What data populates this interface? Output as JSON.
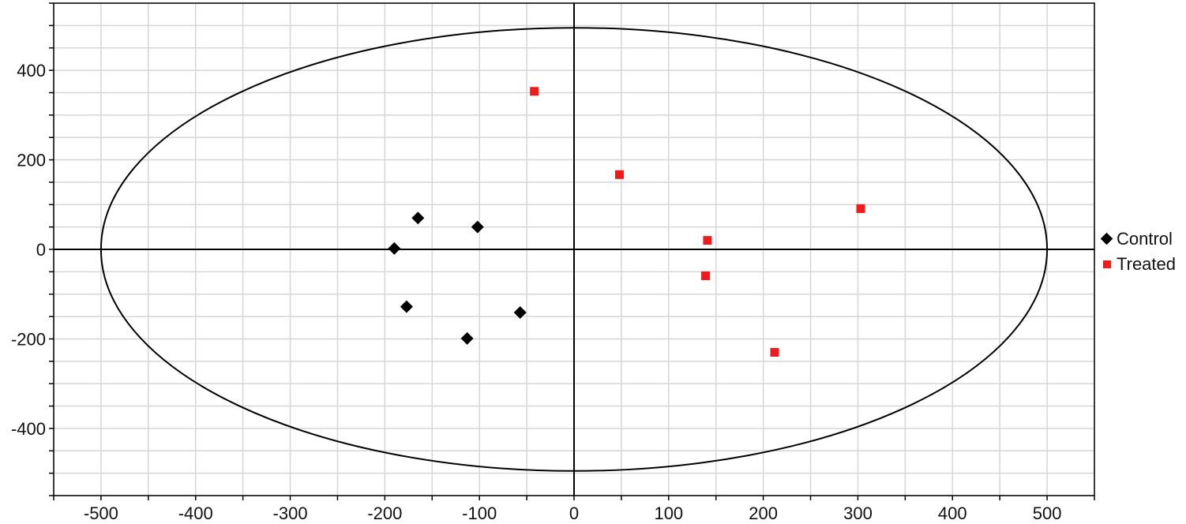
{
  "chart_data": {
    "type": "scatter",
    "title": "",
    "xlabel": "",
    "ylabel": "",
    "xlim": [
      -550,
      550
    ],
    "ylim": [
      -550,
      550
    ],
    "x_ticks": [
      -500,
      -400,
      -300,
      -200,
      -100,
      0,
      100,
      200,
      300,
      400,
      500
    ],
    "y_ticks": [
      -400,
      -200,
      0,
      200,
      400
    ],
    "x_tick_labels": [
      "-500",
      "-400",
      "-300",
      "-200",
      "-100",
      "0",
      "100",
      "200",
      "300",
      "400",
      "500"
    ],
    "y_tick_labels": [
      "-400",
      "-200",
      "0",
      "200",
      "400"
    ],
    "grid": true,
    "legend_position": "right",
    "ellipse": {
      "cx": 0,
      "cy": 0,
      "rx": 500,
      "ry": 495
    },
    "series": [
      {
        "name": "Control",
        "marker": "diamond",
        "color": "#000000",
        "points": [
          {
            "x": -165,
            "y": 70
          },
          {
            "x": -102,
            "y": 50
          },
          {
            "x": -190,
            "y": 2
          },
          {
            "x": -177,
            "y": -128
          },
          {
            "x": -57,
            "y": -141
          },
          {
            "x": -113,
            "y": -199
          }
        ]
      },
      {
        "name": "Treated",
        "marker": "square",
        "color": "#ee1c1c",
        "points": [
          {
            "x": -42,
            "y": 353
          },
          {
            "x": 48,
            "y": 167
          },
          {
            "x": 303,
            "y": 91
          },
          {
            "x": 141,
            "y": 20
          },
          {
            "x": 139,
            "y": -59
          },
          {
            "x": 212,
            "y": -230
          }
        ]
      }
    ]
  }
}
